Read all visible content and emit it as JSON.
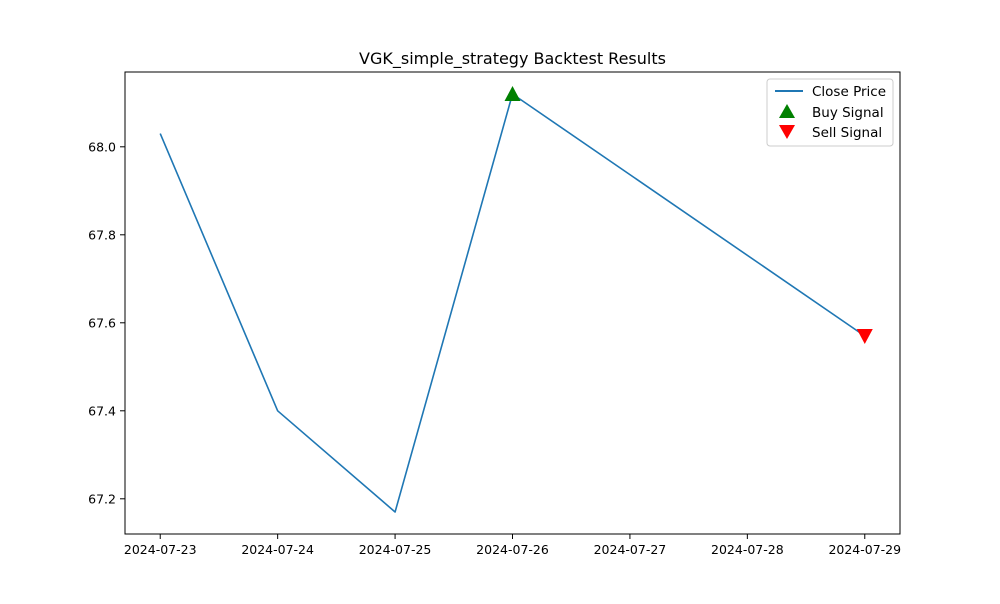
{
  "chart_data": {
    "type": "line",
    "title": "VGK_simple_strategy Backtest Results",
    "xlabel": "",
    "ylabel": "",
    "x_ticks": [
      "2024-07-23",
      "2024-07-24",
      "2024-07-25",
      "2024-07-26",
      "2024-07-27",
      "2024-07-28",
      "2024-07-29"
    ],
    "y_ticks": [
      "67.2",
      "67.4",
      "67.6",
      "67.8",
      "68.0"
    ],
    "xlim": [
      "2024-07-22.7",
      "2024-07-29.3"
    ],
    "ylim": [
      67.12,
      68.17
    ],
    "grid": false,
    "legend_position": "top-right",
    "series": [
      {
        "name": "Close Price",
        "color": "#1f77b4",
        "x": [
          "2024-07-23",
          "2024-07-24",
          "2024-07-25",
          "2024-07-26",
          "2024-07-29"
        ],
        "y": [
          68.03,
          67.4,
          67.17,
          68.12,
          67.57
        ]
      }
    ],
    "signals": [
      {
        "name": "Buy Signal",
        "marker": "triangle-up",
        "color": "#008000",
        "x": [
          "2024-07-26"
        ],
        "y": [
          68.12
        ]
      },
      {
        "name": "Sell Signal",
        "marker": "triangle-down",
        "color": "#ff0000",
        "x": [
          "2024-07-29"
        ],
        "y": [
          67.57
        ]
      }
    ]
  }
}
